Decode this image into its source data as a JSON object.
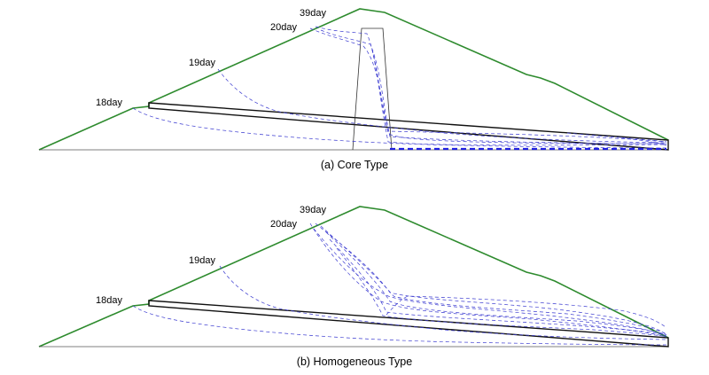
{
  "colors": {
    "embankment": "#2e8b2e",
    "phreatic": "#3a3ad0",
    "outline": "#111111"
  },
  "panels": [
    {
      "id": "core",
      "caption": "(a) Core Type",
      "labels": [
        "18day",
        "19day",
        "20day",
        "39day"
      ]
    },
    {
      "id": "homogeneous",
      "caption": "(b) Homogeneous Type",
      "labels": [
        "18day",
        "19day",
        "20day",
        "39day"
      ]
    }
  ]
}
